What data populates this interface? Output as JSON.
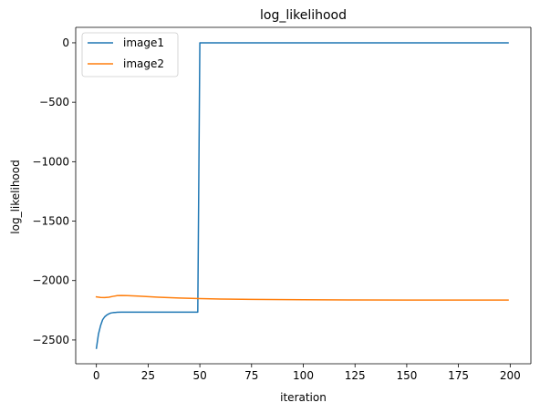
{
  "chart_data": {
    "type": "line",
    "title": "log_likelihood",
    "xlabel": "iteration",
    "ylabel": "log_likelihood",
    "xlim": [
      -10,
      210
    ],
    "ylim": [
      -2700,
      130
    ],
    "xticks": [
      0,
      25,
      50,
      75,
      100,
      125,
      150,
      175,
      200
    ],
    "yticks": [
      0,
      -500,
      -1000,
      -1500,
      -2000,
      -2500
    ],
    "ytick_labels": [
      "0",
      "−500",
      "−1000",
      "−1500",
      "−2000",
      "−2500"
    ],
    "grid": false,
    "legend_position": "upper-left",
    "series": [
      {
        "name": "image1",
        "color": "#1f77b4",
        "x": [
          0,
          1,
          2,
          3,
          4,
          5,
          6,
          7,
          8,
          10,
          12,
          15,
          20,
          25,
          30,
          35,
          40,
          45,
          49,
          50,
          55,
          60,
          75,
          100,
          125,
          150,
          175,
          199
        ],
        "y": [
          -2570,
          -2450,
          -2380,
          -2330,
          -2305,
          -2290,
          -2280,
          -2273,
          -2270,
          -2267,
          -2266,
          -2266,
          -2266,
          -2266,
          -2266,
          -2266,
          -2266,
          -2266,
          -2266,
          0,
          0,
          0,
          0,
          0,
          0,
          0,
          0,
          0
        ]
      },
      {
        "name": "image2",
        "color": "#ff7f0e",
        "x": [
          0,
          2,
          4,
          6,
          8,
          10,
          12,
          15,
          20,
          25,
          30,
          40,
          50,
          60,
          75,
          100,
          125,
          150,
          175,
          199
        ],
        "y": [
          -2137,
          -2142,
          -2143,
          -2140,
          -2133,
          -2127,
          -2126,
          -2127,
          -2131,
          -2135,
          -2140,
          -2147,
          -2152,
          -2155,
          -2158,
          -2161,
          -2163,
          -2164,
          -2164,
          -2164
        ]
      }
    ]
  }
}
